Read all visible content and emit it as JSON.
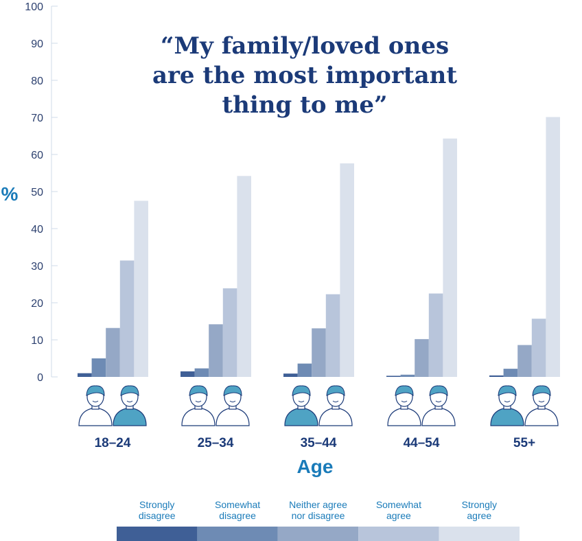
{
  "chart_data": {
    "type": "bar",
    "title_lines": [
      "“My family/loved ones",
      "are the most important",
      "thing to me”"
    ],
    "xlabel": "Age",
    "ylabel": "%",
    "ylim": [
      0,
      100
    ],
    "yticks": [
      0,
      10,
      20,
      30,
      40,
      50,
      60,
      70,
      80,
      90,
      100
    ],
    "grid": false,
    "legend_position": "bottom",
    "categories": [
      "18–24",
      "25–34",
      "35–44",
      "44–54",
      "55+"
    ],
    "series": [
      {
        "name": "Strongly disagree",
        "legend_lines": [
          "Strongly",
          "disagree"
        ],
        "color": "#3f5f96",
        "values": [
          1,
          1.5,
          0.9,
          0.3,
          0.4
        ]
      },
      {
        "name": "Somewhat disagree",
        "legend_lines": [
          "Somewhat",
          "disagree"
        ],
        "color": "#6e8bb4",
        "values": [
          5,
          2.3,
          3.6,
          0.6,
          2.2
        ]
      },
      {
        "name": "Neither agree nor disagree",
        "legend_lines": [
          "Neither agree",
          "nor disagree"
        ],
        "color": "#95a8c6",
        "values": [
          13.2,
          14.2,
          13.1,
          10.2,
          8.6
        ]
      },
      {
        "name": "Somewhat agree",
        "legend_lines": [
          "Somewhat",
          "agree"
        ],
        "color": "#b8c5db",
        "values": [
          31.4,
          23.9,
          22.3,
          22.5,
          15.7
        ]
      },
      {
        "name": "Strongly agree",
        "legend_lines": [
          "Strongly",
          "agree"
        ],
        "color": "#dae1ec",
        "values": [
          47.5,
          54.2,
          57.6,
          64.3,
          70.1
        ]
      }
    ]
  },
  "icons": [
    "person-icon"
  ],
  "colors": {
    "title": "#1b3a78",
    "accent": "#1a7bb9",
    "icon_fill": "#4fa3c4"
  }
}
